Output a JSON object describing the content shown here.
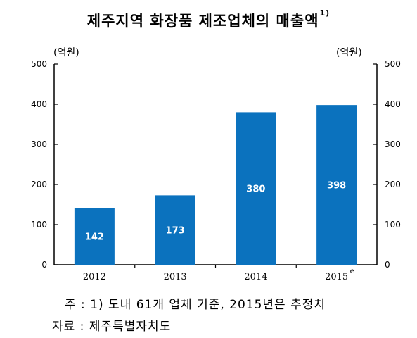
{
  "chart_data": {
    "type": "bar",
    "title": "제주지역 화장품 제조업체의 매출액",
    "title_footnote": "1)",
    "ylabel_left": "(억원)",
    "ylabel_right": "(억원)",
    "categories": [
      "2012",
      "2013",
      "2014",
      "2015"
    ],
    "category_superscripts": [
      "",
      "",
      "",
      "e"
    ],
    "values": [
      142,
      173,
      380,
      398
    ],
    "data_labels": [
      "142",
      "173",
      "380",
      "398"
    ],
    "ylim": [
      0,
      500
    ],
    "yticks": [
      0,
      100,
      200,
      300,
      400,
      500
    ],
    "grid": false,
    "legend": "none",
    "bar_color": "#0b72be",
    "label_color": "#ffffff"
  },
  "notes": {
    "note1": "주 : 1) 도내 61개 업체 기준, 2015년은 추정치",
    "source": "자료 : 제주특별자치도"
  }
}
